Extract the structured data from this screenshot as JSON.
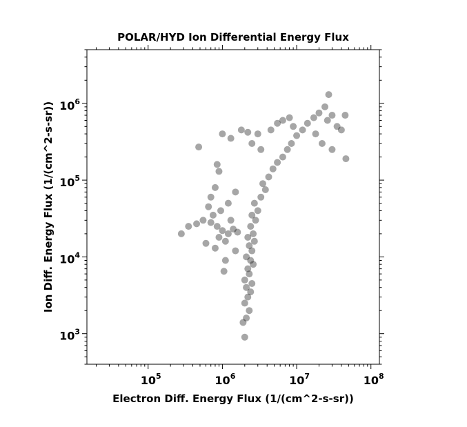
{
  "chart_data": {
    "type": "scatter",
    "title": "POLAR/HYD  Ion Differential Energy Flux",
    "xlabel": "Electron Diff. Energy Flux (1/(cm^2-s-sr))",
    "ylabel": "Ion Diff. Energy Flux (1/(cm^2-s-sr))",
    "xscale": "log",
    "yscale": "log",
    "xlim": [
      15000,
      130000000
    ],
    "ylim": [
      400,
      5000000
    ],
    "x_ticks": [
      {
        "base": "10",
        "exp": "5",
        "value": 100000
      },
      {
        "base": "10",
        "exp": "6",
        "value": 1000000
      },
      {
        "base": "10",
        "exp": "7",
        "value": 10000000
      },
      {
        "base": "10",
        "exp": "8",
        "value": 100000000
      }
    ],
    "y_ticks": [
      {
        "base": "10",
        "exp": "3",
        "value": 1000
      },
      {
        "base": "10",
        "exp": "4",
        "value": 10000
      },
      {
        "base": "10",
        "exp": "5",
        "value": 100000
      },
      {
        "base": "10",
        "exp": "6",
        "value": 1000000
      }
    ],
    "grid": false,
    "marker_color": "#000000",
    "marker_opacity": 0.35,
    "series": [
      {
        "points": [
          [
            2000000,
            900
          ],
          [
            1900000,
            1400
          ],
          [
            2100000,
            1600
          ],
          [
            2300000,
            2000
          ],
          [
            2000000,
            2500
          ],
          [
            2200000,
            3000
          ],
          [
            2400000,
            3500
          ],
          [
            2100000,
            4000
          ],
          [
            2500000,
            4500
          ],
          [
            2000000,
            5000
          ],
          [
            2300000,
            6000
          ],
          [
            2200000,
            7000
          ],
          [
            2600000,
            8000
          ],
          [
            2400000,
            9000
          ],
          [
            2100000,
            10000
          ],
          [
            2500000,
            12000
          ],
          [
            2300000,
            14000
          ],
          [
            2700000,
            16000
          ],
          [
            2200000,
            18000
          ],
          [
            2600000,
            20000
          ],
          [
            2400000,
            25000
          ],
          [
            2800000,
            30000
          ],
          [
            2500000,
            35000
          ],
          [
            3000000,
            40000
          ],
          [
            2700000,
            50000
          ],
          [
            3300000,
            60000
          ],
          [
            3800000,
            75000
          ],
          [
            3500000,
            90000
          ],
          [
            4200000,
            110000
          ],
          [
            4800000,
            140000
          ],
          [
            5500000,
            170000
          ],
          [
            6500000,
            200000
          ],
          [
            7500000,
            250000
          ],
          [
            8500000,
            300000
          ],
          [
            10000000,
            380000
          ],
          [
            12000000,
            450000
          ],
          [
            14000000,
            550000
          ],
          [
            17000000,
            650000
          ],
          [
            20000000,
            750000
          ],
          [
            24000000,
            900000
          ],
          [
            27000000,
            1300000
          ],
          [
            30000000,
            700000
          ],
          [
            35000000,
            500000
          ],
          [
            40000000,
            450000
          ],
          [
            45000000,
            700000
          ],
          [
            46000000,
            190000
          ],
          [
            30000000,
            250000
          ],
          [
            22000000,
            300000
          ],
          [
            18000000,
            400000
          ],
          [
            26000000,
            600000
          ],
          [
            280000,
            20000
          ],
          [
            350000,
            25000
          ],
          [
            450000,
            27000
          ],
          [
            550000,
            30000
          ],
          [
            700000,
            28000
          ],
          [
            850000,
            25000
          ],
          [
            1000000,
            22000
          ],
          [
            1200000,
            20000
          ],
          [
            1400000,
            23000
          ],
          [
            1600000,
            21000
          ],
          [
            600000,
            15000
          ],
          [
            800000,
            13000
          ],
          [
            1100000,
            16000
          ],
          [
            750000,
            35000
          ],
          [
            950000,
            40000
          ],
          [
            1100000,
            9000
          ],
          [
            1050000,
            6500
          ],
          [
            1500000,
            12000
          ],
          [
            1300000,
            30000
          ],
          [
            900000,
            18000
          ],
          [
            700000,
            60000
          ],
          [
            800000,
            80000
          ],
          [
            900000,
            130000
          ],
          [
            850000,
            160000
          ],
          [
            1000000,
            400000
          ],
          [
            1300000,
            350000
          ],
          [
            1800000,
            450000
          ],
          [
            2200000,
            420000
          ],
          [
            2500000,
            300000
          ],
          [
            3000000,
            400000
          ],
          [
            3300000,
            250000
          ],
          [
            480000,
            270000
          ],
          [
            650000,
            45000
          ],
          [
            1200000,
            50000
          ],
          [
            1500000,
            70000
          ],
          [
            4500000,
            450000
          ],
          [
            5500000,
            550000
          ],
          [
            6500000,
            600000
          ],
          [
            8000000,
            650000
          ],
          [
            9000000,
            500000
          ]
        ]
      }
    ]
  }
}
